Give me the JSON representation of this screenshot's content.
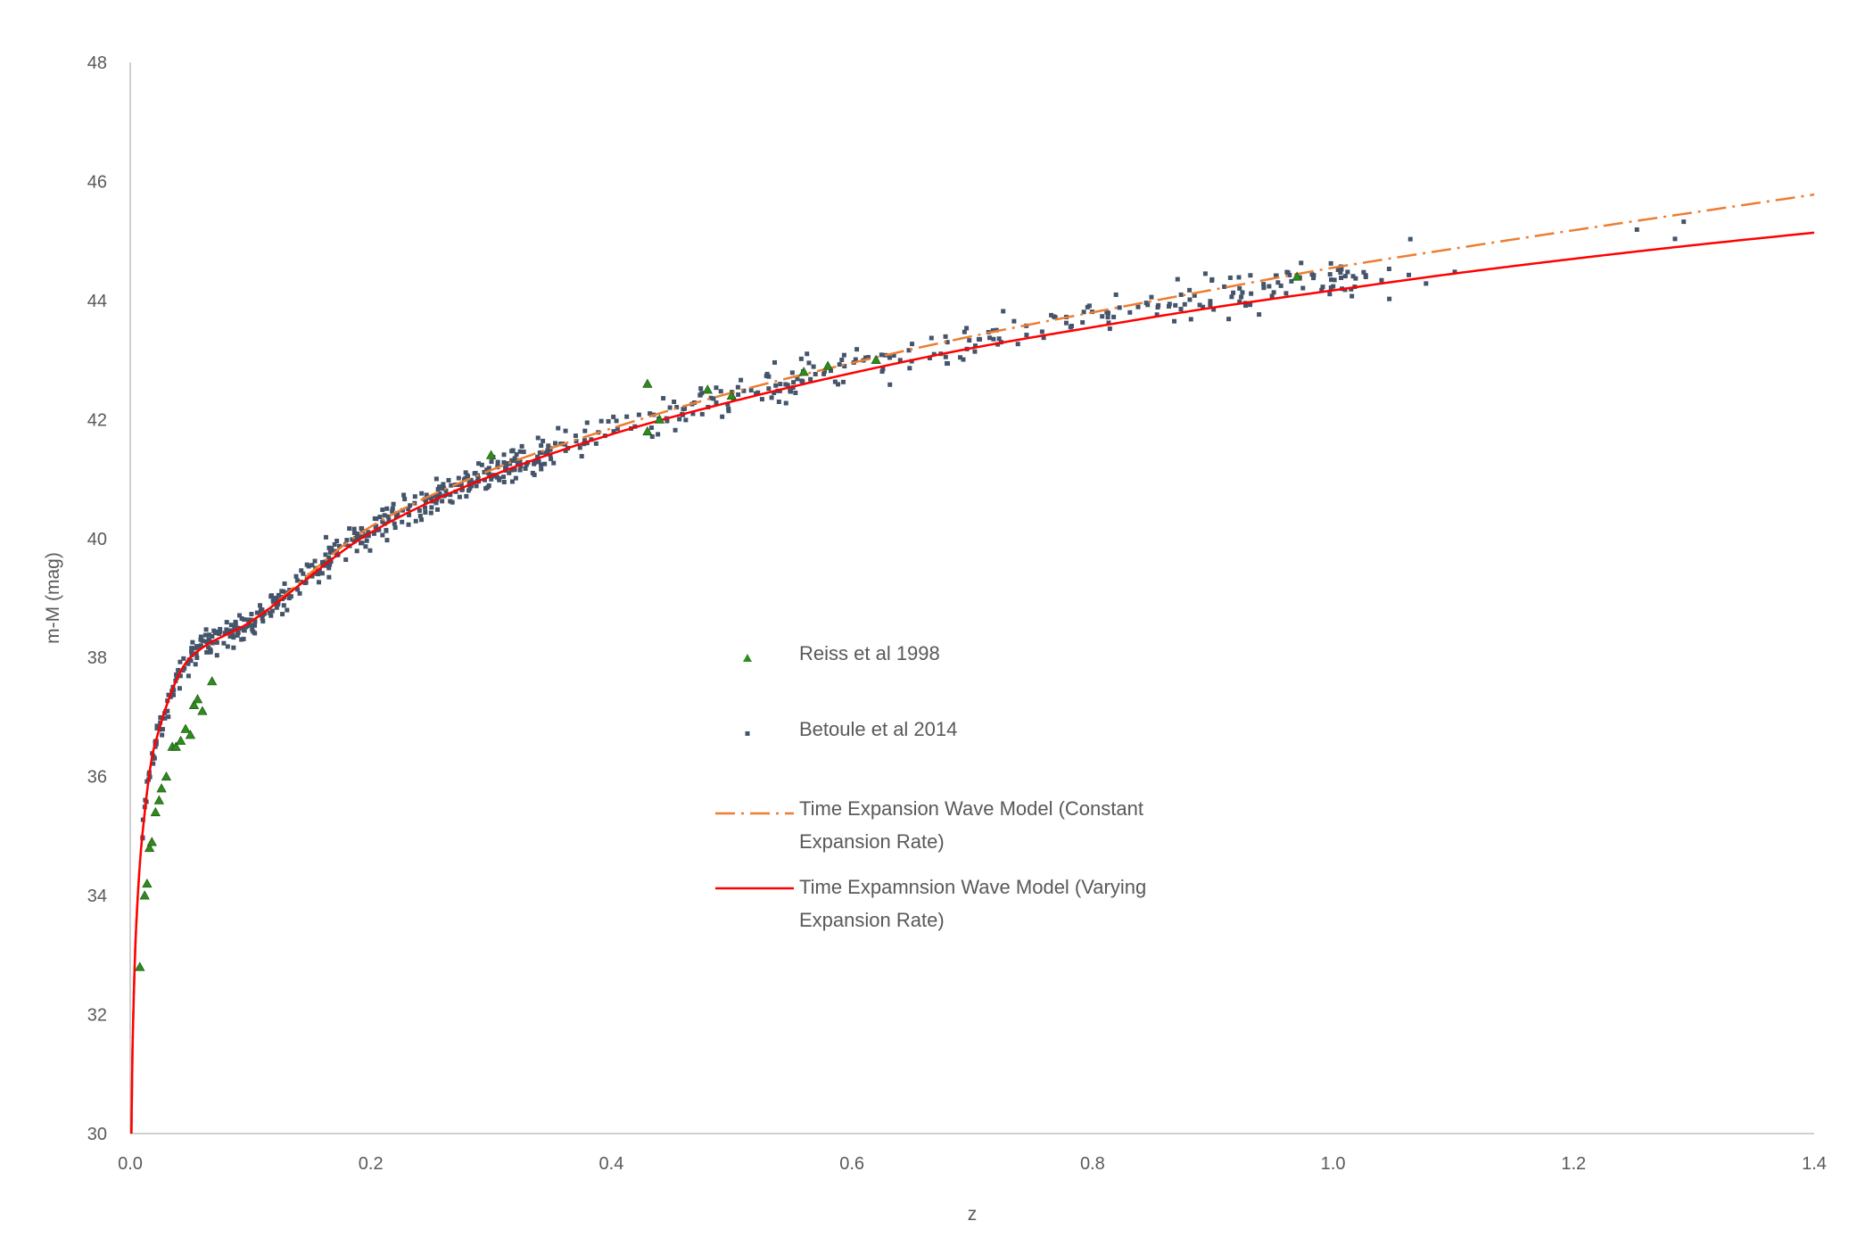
{
  "chart_data": {
    "type": "scatter",
    "title": "",
    "xlabel": "z",
    "ylabel": "m-M (mag)",
    "xlim": [
      0,
      1.4
    ],
    "ylim": [
      30,
      48
    ],
    "xticks": [
      0,
      0.2,
      0.4,
      0.6,
      0.8,
      1.0,
      1.2,
      1.4
    ],
    "xtick_labels": [
      "0.0",
      "0.2",
      "0.4",
      "0.6",
      "0.8",
      "1.0",
      "1.2",
      "1.4"
    ],
    "yticks": [
      30,
      32,
      34,
      36,
      38,
      40,
      42,
      44,
      46,
      48
    ],
    "ytick_labels": [
      "30",
      "32",
      "34",
      "36",
      "38",
      "40",
      "42",
      "44",
      "46",
      "48"
    ],
    "grid": false,
    "legend_position": "center",
    "series": [
      {
        "name": "Reiss et al 1998",
        "kind": "scatter",
        "marker": "triangle",
        "color": "#2e8b1e",
        "x": [
          0.008,
          0.012,
          0.014,
          0.016,
          0.018,
          0.021,
          0.024,
          0.026,
          0.03,
          0.035,
          0.038,
          0.042,
          0.046,
          0.05,
          0.053,
          0.056,
          0.06,
          0.068,
          0.3,
          0.43,
          0.43,
          0.44,
          0.48,
          0.5,
          0.56,
          0.58,
          0.62,
          0.97
        ],
        "y": [
          32.8,
          34.0,
          34.2,
          34.8,
          34.9,
          35.4,
          35.6,
          35.8,
          36.0,
          36.5,
          36.5,
          36.6,
          36.8,
          36.7,
          37.2,
          37.3,
          37.1,
          37.6,
          41.4,
          42.6,
          41.8,
          42.0,
          42.5,
          42.4,
          42.8,
          42.9,
          43.0,
          44.4
        ]
      },
      {
        "name": "Betoule et al 2014",
        "kind": "scatter",
        "marker": "square",
        "color": "#44546a",
        "count": 740,
        "x_range": [
          0.01,
          1.3
        ],
        "scatter_sd_mag": 0.17
      },
      {
        "name": "Time Expansion Wave Model (Constant Expansion Rate)",
        "kind": "line",
        "style": "dash-dot",
        "color": "#ed7d31",
        "x": [
          0.001,
          0.002,
          0.005,
          0.01,
          0.02,
          0.05,
          0.1,
          0.2,
          0.3,
          0.4,
          0.5,
          0.6,
          0.7,
          0.8,
          0.9,
          1.0,
          1.1,
          1.2,
          1.3,
          1.4
        ],
        "y": [
          30.0,
          31.5,
          33.5,
          35.0,
          36.5,
          38.0,
          38.6,
          40.2,
          41.15,
          41.85,
          42.45,
          42.95,
          43.4,
          43.8,
          44.18,
          44.55,
          44.87,
          45.18,
          45.48,
          45.78
        ]
      },
      {
        "name": "Time Expamnsion Wave Model (Varying Expansion Rate)",
        "kind": "line",
        "style": "solid",
        "color": "#ff0000",
        "x": [
          0.001,
          0.002,
          0.005,
          0.01,
          0.02,
          0.05,
          0.1,
          0.2,
          0.3,
          0.4,
          0.5,
          0.6,
          0.7,
          0.8,
          0.9,
          1.0,
          1.1,
          1.2,
          1.3,
          1.4
        ],
        "y": [
          30.0,
          31.5,
          33.5,
          35.0,
          36.5,
          38.0,
          38.6,
          40.1,
          41.05,
          41.75,
          42.3,
          42.78,
          43.2,
          43.55,
          43.88,
          44.17,
          44.45,
          44.7,
          44.93,
          45.14
        ]
      }
    ],
    "legend": [
      {
        "lines": [
          "Reiss et al 1998"
        ]
      },
      {
        "lines": [
          "Betoule et al 2014"
        ]
      },
      {
        "lines": [
          "Time Expansion Wave Model (Constant",
          "Expansion Rate)"
        ]
      },
      {
        "lines": [
          "Time Expamnsion Wave Model (Varying",
          "Expansion Rate)"
        ]
      }
    ]
  }
}
